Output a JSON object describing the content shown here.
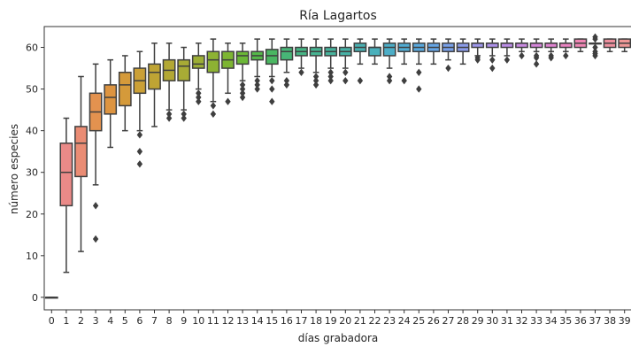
{
  "chart_data": {
    "type": "box",
    "title": "Ría Lagartos",
    "xlabel": "días grabadora",
    "ylabel": "número especies",
    "ylim": [
      -3,
      65
    ],
    "yticks": [
      0,
      10,
      20,
      30,
      40,
      50,
      60
    ],
    "grid": false,
    "legend": "none",
    "categories": [
      "0",
      "1",
      "2",
      "3",
      "4",
      "5",
      "6",
      "7",
      "8",
      "9",
      "10",
      "11",
      "12",
      "13",
      "14",
      "15",
      "16",
      "17",
      "18",
      "19",
      "20",
      "21",
      "22",
      "23",
      "24",
      "25",
      "26",
      "27",
      "28",
      "29",
      "30",
      "31",
      "32",
      "33",
      "34",
      "35",
      "36",
      "37",
      "38",
      "39"
    ],
    "colors": [
      "#e8b3c0",
      "#ea8a88",
      "#ea8c74",
      "#e3924f",
      "#dd9440",
      "#d59a3a",
      "#cba036",
      "#bfa434",
      "#b3a834",
      "#a8ab35",
      "#9cae35",
      "#8db233",
      "#7db532",
      "#6bb737",
      "#55b84a",
      "#4ab762",
      "#47b677",
      "#46b585",
      "#47b492",
      "#47b39c",
      "#48b2a6",
      "#49b0b1",
      "#4ab0bb",
      "#4daec7",
      "#51acd3",
      "#5aa9de",
      "#66a6e6",
      "#79a1ea",
      "#8c9cea",
      "#9d96ea",
      "#ae91ea",
      "#bc8de7",
      "#c98ae1",
      "#d586da",
      "#e083d1",
      "#ea84c2",
      "#ef86b4",
      "#eb8aa8",
      "#ee909e",
      "#ef9897"
    ],
    "boxes": [
      {
        "x": "0",
        "whislo": 0,
        "q1": 0,
        "med": 0,
        "q3": 0,
        "whishi": 0,
        "fliers": []
      },
      {
        "x": "1",
        "whislo": 6,
        "q1": 22,
        "med": 30,
        "q3": 37,
        "whishi": 43,
        "fliers": []
      },
      {
        "x": "2",
        "whislo": 11,
        "q1": 29,
        "med": 37,
        "q3": 41,
        "whishi": 53,
        "fliers": []
      },
      {
        "x": "3",
        "whislo": 27,
        "q1": 40,
        "med": 44.5,
        "q3": 49,
        "whishi": 56,
        "fliers": [
          22,
          14
        ]
      },
      {
        "x": "4",
        "whislo": 36,
        "q1": 44,
        "med": 48,
        "q3": 51,
        "whishi": 57,
        "fliers": []
      },
      {
        "x": "5",
        "whislo": 40,
        "q1": 46,
        "med": 51,
        "q3": 54,
        "whishi": 58,
        "fliers": []
      },
      {
        "x": "6",
        "whislo": 40,
        "q1": 49,
        "med": 52,
        "q3": 55,
        "whishi": 59,
        "fliers": [
          39,
          35,
          32
        ]
      },
      {
        "x": "7",
        "whislo": 41,
        "q1": 50,
        "med": 54,
        "q3": 56,
        "whishi": 61,
        "fliers": []
      },
      {
        "x": "8",
        "whislo": 45,
        "q1": 52,
        "med": 54.5,
        "q3": 57,
        "whishi": 61,
        "fliers": [
          44,
          43
        ]
      },
      {
        "x": "9",
        "whislo": 45,
        "q1": 52,
        "med": 55.5,
        "q3": 57,
        "whishi": 60,
        "fliers": [
          44,
          43
        ]
      },
      {
        "x": "10",
        "whislo": 50,
        "q1": 55,
        "med": 56,
        "q3": 58,
        "whishi": 61,
        "fliers": [
          49,
          48,
          47
        ]
      },
      {
        "x": "11",
        "whislo": 47,
        "q1": 54,
        "med": 57,
        "q3": 59,
        "whishi": 62,
        "fliers": [
          46,
          44
        ]
      },
      {
        "x": "12",
        "whislo": 49,
        "q1": 55,
        "med": 57,
        "q3": 59,
        "whishi": 61,
        "fliers": [
          47
        ]
      },
      {
        "x": "13",
        "whislo": 52,
        "q1": 56,
        "med": 58,
        "q3": 59,
        "whishi": 61,
        "fliers": [
          51,
          50,
          49,
          48
        ]
      },
      {
        "x": "14",
        "whislo": 53,
        "q1": 57,
        "med": 58,
        "q3": 59,
        "whishi": 62,
        "fliers": [
          52,
          51,
          50
        ]
      },
      {
        "x": "15",
        "whislo": 53,
        "q1": 56,
        "med": 58,
        "q3": 59.5,
        "whishi": 62,
        "fliers": [
          52,
          50,
          47
        ]
      },
      {
        "x": "16",
        "whislo": 54,
        "q1": 57,
        "med": 59,
        "q3": 60,
        "whishi": 62,
        "fliers": [
          52,
          51
        ]
      },
      {
        "x": "17",
        "whislo": 55,
        "q1": 58,
        "med": 59,
        "q3": 60,
        "whishi": 62,
        "fliers": [
          54
        ]
      },
      {
        "x": "18",
        "whislo": 54,
        "q1": 58,
        "med": 59,
        "q3": 60,
        "whishi": 62,
        "fliers": [
          53,
          52,
          51
        ]
      },
      {
        "x": "19",
        "whislo": 55,
        "q1": 58,
        "med": 59,
        "q3": 60,
        "whishi": 62,
        "fliers": [
          54,
          53,
          52
        ]
      },
      {
        "x": "20",
        "whislo": 55,
        "q1": 58,
        "med": 59,
        "q3": 60,
        "whishi": 62,
        "fliers": [
          54,
          52
        ]
      },
      {
        "x": "21",
        "whislo": 56,
        "q1": 59,
        "med": 60,
        "q3": 61,
        "whishi": 62,
        "fliers": [
          52
        ]
      },
      {
        "x": "22",
        "whislo": 56,
        "q1": 58,
        "med": 60,
        "q3": 60,
        "whishi": 62,
        "fliers": []
      },
      {
        "x": "23",
        "whislo": 55,
        "q1": 58,
        "med": 60,
        "q3": 61,
        "whishi": 62,
        "fliers": [
          53,
          52
        ]
      },
      {
        "x": "24",
        "whislo": 56,
        "q1": 59,
        "med": 60,
        "q3": 61,
        "whishi": 62,
        "fliers": [
          52
        ]
      },
      {
        "x": "25",
        "whislo": 56,
        "q1": 59,
        "med": 60,
        "q3": 61,
        "whishi": 62,
        "fliers": [
          54,
          50
        ]
      },
      {
        "x": "26",
        "whislo": 56,
        "q1": 59,
        "med": 60,
        "q3": 61,
        "whishi": 62,
        "fliers": []
      },
      {
        "x": "27",
        "whislo": 57,
        "q1": 59,
        "med": 60,
        "q3": 61,
        "whishi": 62,
        "fliers": [
          55
        ]
      },
      {
        "x": "28",
        "whislo": 56,
        "q1": 59,
        "med": 60,
        "q3": 61,
        "whishi": 62,
        "fliers": []
      },
      {
        "x": "29",
        "whislo": 58,
        "q1": 60,
        "med": 61,
        "q3": 61,
        "whishi": 62,
        "fliers": [
          57.5,
          57
        ]
      },
      {
        "x": "30",
        "whislo": 58,
        "q1": 60,
        "med": 61,
        "q3": 61,
        "whishi": 62,
        "fliers": [
          57,
          55
        ]
      },
      {
        "x": "31",
        "whislo": 58,
        "q1": 60,
        "med": 61,
        "q3": 61,
        "whishi": 62,
        "fliers": [
          57
        ]
      },
      {
        "x": "32",
        "whislo": 59,
        "q1": 60,
        "med": 61,
        "q3": 61,
        "whishi": 62,
        "fliers": [
          58
        ]
      },
      {
        "x": "33",
        "whislo": 59,
        "q1": 60,
        "med": 61,
        "q3": 61,
        "whishi": 62,
        "fliers": [
          58,
          57.5,
          56
        ]
      },
      {
        "x": "34",
        "whislo": 59,
        "q1": 60,
        "med": 61,
        "q3": 61,
        "whishi": 62,
        "fliers": [
          58,
          57.5
        ]
      },
      {
        "x": "35",
        "whislo": 59,
        "q1": 60,
        "med": 61,
        "q3": 61,
        "whishi": 62,
        "fliers": [
          58
        ]
      },
      {
        "x": "36",
        "whislo": 59,
        "q1": 60,
        "med": 61,
        "q3": 62,
        "whishi": 62,
        "fliers": []
      },
      {
        "x": "37",
        "whislo": 61,
        "q1": 61,
        "med": 61,
        "q3": 61,
        "whishi": 61,
        "fliers": [
          62.5,
          62,
          60,
          59,
          58.5,
          58
        ]
      },
      {
        "x": "38",
        "whislo": 59,
        "q1": 60,
        "med": 61,
        "q3": 62,
        "whishi": 62,
        "fliers": []
      },
      {
        "x": "39",
        "whislo": 59,
        "q1": 60,
        "med": 61,
        "q3": 62,
        "whishi": 62,
        "fliers": []
      }
    ]
  }
}
